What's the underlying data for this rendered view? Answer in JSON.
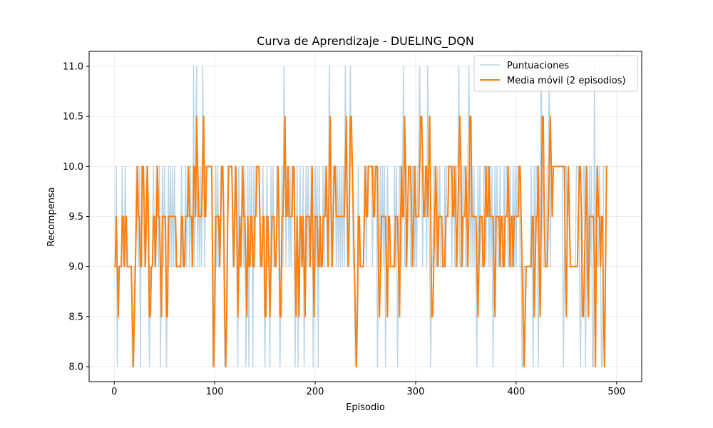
{
  "chart_data": {
    "type": "line",
    "title": "Curva de Aprendizaje - DUELING_DQN",
    "xlabel": "Episodio",
    "ylabel": "Recompensa",
    "xlim": [
      -25,
      525
    ],
    "ylim": [
      7.85,
      11.15
    ],
    "xticks": [
      0,
      100,
      200,
      300,
      400,
      500
    ],
    "yticks": [
      8.0,
      8.5,
      9.0,
      9.5,
      10.0,
      10.5,
      11.0
    ],
    "xtick_labels": [
      "0",
      "100",
      "200",
      "300",
      "400",
      "500"
    ],
    "ytick_labels": [
      "8.0",
      "8.5",
      "9.0",
      "9.5",
      "10.0",
      "10.5",
      "11.0"
    ],
    "grid": true,
    "legend_position": "top-right",
    "series": [
      {
        "name": "Puntuaciones",
        "color": "#1f77b4",
        "alpha": 0.3,
        "x_start": 0,
        "x_step": 1,
        "values": [
          9,
          9,
          10,
          8,
          9,
          9,
          9,
          9,
          10,
          9,
          9,
          10,
          9,
          9,
          9,
          9,
          9,
          9,
          8,
          8,
          9,
          9,
          10,
          10,
          9,
          10,
          8,
          10,
          10,
          10,
          9,
          9,
          10,
          10,
          9,
          8,
          9,
          9,
          9,
          10,
          9,
          9,
          10,
          10,
          9,
          10,
          8,
          9,
          10,
          9,
          10,
          9,
          8,
          9,
          10,
          9,
          10,
          9,
          10,
          9,
          10,
          9,
          9,
          9,
          9,
          9,
          9,
          10,
          9,
          9,
          9,
          10,
          9,
          10,
          10,
          9,
          10,
          9,
          9,
          11,
          9,
          10,
          11,
          9,
          10,
          9,
          10,
          9,
          11,
          10,
          9,
          10,
          10,
          10,
          10,
          10,
          10,
          10,
          8,
          8,
          9,
          10,
          9,
          10,
          9,
          9,
          10,
          10,
          10,
          9,
          8,
          8,
          9,
          10,
          10,
          10,
          10,
          10,
          9,
          9,
          10,
          10,
          9,
          8,
          10,
          9,
          9,
          10,
          10,
          9,
          10,
          8,
          9,
          10,
          8,
          10,
          9,
          10,
          8,
          10,
          9,
          10,
          10,
          10,
          10,
          9,
          9,
          9,
          10,
          9,
          8,
          9,
          10,
          9,
          9,
          8,
          10,
          9,
          10,
          9,
          9,
          9,
          10,
          10,
          9,
          8,
          9,
          10,
          9,
          11,
          10,
          9,
          10,
          10,
          9,
          10,
          9,
          10,
          10,
          10,
          8,
          9,
          10,
          8,
          9,
          10,
          9,
          9,
          10,
          8,
          9,
          10,
          9,
          10,
          9,
          9,
          10,
          10,
          8,
          9,
          10,
          9,
          10,
          8,
          10,
          9,
          9,
          9,
          10,
          9,
          10,
          10,
          9,
          9,
          11,
          10,
          9,
          9,
          10,
          10,
          10,
          9,
          10,
          9,
          10,
          9,
          10,
          9,
          10,
          9,
          11,
          10,
          9,
          9,
          10,
          11,
          10,
          10,
          9,
          9,
          8,
          8,
          9,
          10,
          9,
          9,
          9,
          9,
          9,
          10,
          10,
          9,
          10,
          10,
          10,
          10,
          10,
          9,
          10,
          10,
          10,
          10,
          8,
          9,
          9,
          10,
          9,
          10,
          9,
          10,
          8,
          9,
          10,
          9,
          9,
          9,
          9,
          9,
          9,
          10,
          9,
          10,
          8,
          9,
          10,
          10,
          9,
          10,
          11,
          9,
          9,
          10,
          10,
          10,
          10,
          9,
          9,
          10,
          10,
          9,
          10,
          9,
          10,
          10,
          11,
          10,
          10,
          9,
          10,
          10,
          10,
          9,
          11,
          10,
          9,
          8,
          9,
          9,
          10,
          10,
          9,
          9,
          10,
          9,
          10,
          9,
          9,
          9,
          9,
          10,
          9,
          10,
          10,
          10,
          10,
          10,
          9,
          10,
          10,
          9,
          9,
          10,
          10,
          11,
          9,
          9,
          10,
          9,
          10,
          10,
          9,
          9,
          10,
          11,
          10,
          9,
          10,
          9,
          10,
          9,
          9,
          8,
          10,
          9,
          10,
          9,
          9,
          9,
          10,
          10,
          9,
          10,
          10,
          9,
          10,
          9,
          10,
          8,
          9,
          10,
          9,
          10,
          9,
          9,
          10,
          9,
          9,
          9,
          10,
          9,
          10,
          10,
          9,
          9,
          10,
          9,
          9,
          10,
          9,
          10,
          9,
          10,
          10,
          10,
          9,
          9,
          8,
          8,
          9,
          9,
          9,
          9,
          9,
          9,
          9,
          10,
          9,
          8,
          10,
          9,
          10,
          10,
          8,
          9,
          10,
          11,
          10,
          9,
          9,
          9,
          9,
          10,
          10,
          11,
          9,
          10,
          10,
          10,
          10,
          10,
          10,
          10,
          10,
          10,
          10,
          10,
          10,
          8,
          9,
          10,
          10,
          9,
          9,
          9,
          9,
          9,
          9,
          9,
          9,
          9,
          10,
          10,
          10,
          9,
          8,
          9,
          9,
          10,
          10,
          8,
          9,
          10,
          9,
          10,
          9,
          10,
          8,
          8,
          11,
          9,
          10,
          9,
          9,
          10,
          9,
          8,
          8,
          10,
          10,
          10
        ]
      },
      {
        "name": "Media móvil (2 episodios)",
        "color": "#ff7f0e",
        "alpha": 1.0,
        "x_start": 0,
        "x_step": 1,
        "values": [
          9.0,
          9.0,
          9.5,
          9.0,
          8.5,
          9.0,
          9.0,
          9.0,
          9.5,
          9.5,
          9.0,
          9.5,
          9.5,
          9.0,
          9.0,
          9.0,
          9.0,
          9.0,
          8.5,
          8.0,
          8.5,
          9.0,
          9.5,
          10.0,
          9.5,
          9.5,
          9.0,
          9.0,
          10.0,
          10.0,
          9.5,
          9.0,
          9.5,
          10.0,
          9.5,
          8.5,
          8.5,
          9.0,
          9.0,
          9.5,
          9.5,
          9.0,
          9.5,
          10.0,
          9.5,
          9.5,
          9.0,
          8.5,
          9.5,
          9.5,
          9.5,
          9.5,
          8.5,
          8.5,
          9.5,
          9.5,
          9.5,
          9.5,
          9.5,
          9.5,
          9.5,
          9.5,
          9.0,
          9.0,
          9.0,
          9.0,
          9.0,
          9.5,
          9.5,
          9.0,
          9.0,
          9.5,
          9.5,
          9.5,
          10.0,
          9.5,
          9.5,
          9.5,
          9.0,
          10.0,
          10.0,
          9.5,
          10.5,
          10.0,
          9.5,
          9.5,
          9.5,
          9.5,
          10.0,
          10.5,
          9.5,
          9.5,
          10.0,
          10.0,
          10.0,
          10.0,
          10.0,
          10.0,
          9.0,
          8.0,
          8.5,
          9.5,
          9.5,
          9.5,
          9.5,
          9.0,
          9.5,
          10.0,
          10.0,
          9.5,
          8.5,
          8.0,
          8.5,
          9.5,
          10.0,
          10.0,
          10.0,
          10.0,
          9.5,
          9.0,
          9.5,
          10.0,
          9.5,
          8.5,
          9.0,
          9.5,
          9.0,
          9.5,
          10.0,
          9.5,
          9.5,
          9.0,
          8.5,
          9.5,
          9.0,
          9.0,
          9.5,
          9.5,
          9.0,
          9.0,
          9.5,
          9.5,
          10.0,
          10.0,
          10.0,
          9.5,
          9.0,
          9.0,
          9.5,
          9.5,
          8.5,
          8.5,
          9.5,
          9.5,
          9.0,
          8.5,
          9.0,
          9.5,
          9.5,
          9.5,
          9.0,
          9.0,
          9.5,
          10.0,
          9.5,
          8.5,
          8.5,
          9.5,
          9.5,
          10.0,
          10.5,
          9.5,
          9.5,
          10.0,
          9.5,
          9.5,
          9.5,
          9.5,
          10.0,
          10.0,
          9.0,
          8.5,
          9.5,
          9.0,
          8.5,
          9.5,
          9.5,
          9.0,
          9.5,
          9.0,
          8.5,
          9.5,
          9.5,
          9.5,
          9.5,
          9.0,
          9.5,
          10.0,
          9.0,
          8.5,
          9.5,
          9.5,
          9.5,
          9.0,
          9.0,
          9.5,
          9.0,
          9.0,
          9.5,
          9.5,
          9.5,
          10.0,
          9.5,
          9.0,
          10.0,
          10.5,
          9.5,
          9.0,
          9.5,
          10.0,
          10.0,
          9.5,
          9.5,
          9.5,
          9.5,
          9.5,
          9.5,
          9.5,
          9.5,
          9.5,
          10.0,
          10.5,
          9.5,
          9.0,
          9.5,
          10.5,
          10.5,
          10.0,
          9.5,
          9.0,
          8.5,
          8.0,
          8.5,
          9.5,
          9.5,
          9.0,
          9.0,
          9.0,
          9.0,
          9.5,
          10.0,
          9.5,
          9.5,
          10.0,
          10.0,
          10.0,
          10.0,
          10.0,
          9.5,
          9.5,
          10.0,
          10.0,
          10.0,
          9.0,
          8.5,
          9.0,
          9.5,
          9.5,
          9.5,
          9.5,
          9.5,
          9.0,
          8.5,
          9.5,
          9.5,
          9.0,
          9.0,
          9.0,
          9.0,
          9.0,
          9.5,
          9.5,
          9.5,
          9.0,
          8.5,
          9.5,
          10.0,
          9.5,
          9.5,
          10.5,
          10.0,
          9.0,
          9.5,
          10.0,
          10.0,
          10.0,
          9.5,
          9.0,
          9.5,
          10.0,
          9.5,
          9.5,
          9.5,
          9.5,
          10.0,
          10.5,
          10.5,
          10.0,
          9.5,
          9.5,
          10.0,
          10.0,
          9.5,
          10.0,
          10.5,
          9.5,
          8.5,
          8.5,
          9.0,
          9.5,
          10.0,
          9.5,
          9.0,
          9.5,
          9.5,
          9.5,
          9.5,
          9.0,
          9.0,
          9.0,
          9.5,
          9.5,
          9.5,
          10.0,
          10.0,
          10.0,
          10.0,
          9.5,
          9.5,
          10.0,
          9.5,
          9.0,
          9.5,
          10.0,
          10.5,
          10.0,
          9.0,
          9.5,
          9.5,
          9.5,
          10.0,
          9.5,
          9.0,
          9.5,
          10.5,
          10.5,
          9.5,
          9.5,
          9.5,
          9.5,
          9.5,
          9.0,
          8.5,
          9.0,
          9.5,
          9.5,
          9.5,
          9.0,
          9.0,
          9.5,
          10.0,
          9.5,
          9.5,
          10.0,
          9.5,
          9.5,
          9.5,
          9.5,
          9.0,
          8.5,
          9.5,
          9.5,
          9.5,
          9.5,
          9.0,
          9.5,
          9.5,
          9.0,
          9.0,
          9.5,
          9.5,
          9.5,
          10.0,
          9.5,
          9.0,
          9.5,
          9.5,
          9.0,
          9.5,
          9.5,
          9.5,
          9.5,
          9.5,
          10.0,
          10.0,
          9.5,
          9.0,
          8.5,
          8.0,
          8.5,
          9.0,
          9.0,
          9.0,
          9.0,
          9.0,
          9.0,
          9.5,
          9.5,
          8.5,
          9.0,
          9.5,
          9.5,
          10.0,
          9.0,
          8.5,
          9.5,
          10.5,
          10.5,
          9.5,
          9.0,
          9.0,
          9.0,
          9.5,
          10.0,
          10.5,
          10.0,
          9.5,
          10.0,
          10.0,
          10.0,
          10.0,
          10.0,
          10.0,
          10.0,
          10.0,
          10.0,
          10.0,
          10.0,
          10.0,
          9.0,
          8.5,
          9.5,
          10.0,
          9.5,
          9.0,
          9.0,
          9.0,
          9.0,
          9.0,
          9.0,
          9.0,
          9.0,
          9.5,
          10.0,
          10.0,
          9.5,
          8.5,
          8.5,
          9.0,
          9.5,
          10.0,
          9.0,
          8.5,
          9.5,
          9.5,
          9.5,
          9.5,
          9.5,
          9.0,
          8.0,
          9.5,
          10.0,
          9.5,
          9.5,
          9.0,
          9.5,
          9.5,
          8.5,
          8.0,
          9.0,
          10.0,
          10.0
        ]
      }
    ]
  }
}
